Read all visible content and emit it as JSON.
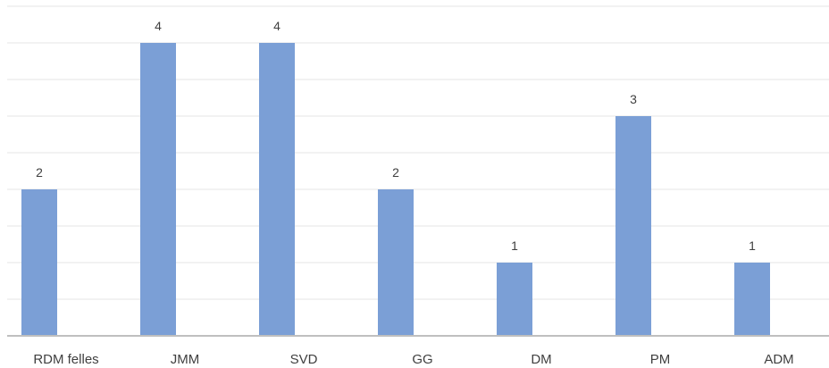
{
  "chart_data": {
    "type": "bar",
    "categories": [
      "RDM felles",
      "JMM",
      "SVD",
      "GG",
      "DM",
      "PM",
      "ADM"
    ],
    "values": [
      2,
      4,
      4,
      2,
      1,
      3,
      1
    ],
    "title": "",
    "xlabel": "",
    "ylabel": "",
    "ylim": [
      0,
      4.5
    ],
    "grid": true,
    "show_data_labels": true,
    "legend": "none",
    "bar_color": "#7b9fd6"
  }
}
